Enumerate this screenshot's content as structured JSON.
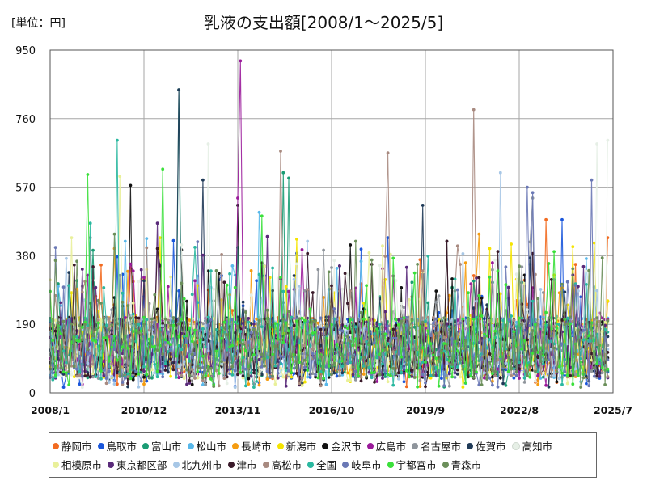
{
  "unit_label": "[単位：円]",
  "chart_data": {
    "type": "line",
    "title": "乳液の支出額[2008/1～2025/5]",
    "xlabel": "",
    "ylabel": "",
    "x_range": [
      "2008/1",
      "2025/7"
    ],
    "x_ticks": [
      "2008/1",
      "2010/12",
      "2013/11",
      "2016/10",
      "2019/9",
      "2022/8",
      "2025/7"
    ],
    "ylim": [
      0,
      950
    ],
    "y_ticks": [
      0,
      190,
      380,
      570,
      760,
      950
    ],
    "grid": true,
    "legend_position": "bottom",
    "series": [
      {
        "name": "静岡市",
        "color": "#f26b21",
        "peaks": [
          [
            2025.33,
            550
          ],
          [
            2023.42,
            480
          ],
          [
            2025.33,
            430
          ]
        ]
      },
      {
        "name": "鳥取市",
        "color": "#1a56db",
        "peaks": [
          [
            2023.92,
            480
          ],
          [
            2018.5,
            430
          ]
        ]
      },
      {
        "name": "富山市",
        "color": "#1a9c74",
        "peaks": [
          [
            2012.0,
            840
          ],
          [
            2015.25,
            610
          ],
          [
            2015.42,
            595
          ]
        ]
      },
      {
        "name": "松山市",
        "color": "#58b8ea",
        "peaks": [
          [
            2014.5,
            500
          ],
          [
            2010.33,
            420
          ]
        ]
      },
      {
        "name": "長崎市",
        "color": "#f59c10",
        "peaks": [
          [
            2021.33,
            440
          ],
          [
            2010.0,
            400
          ]
        ]
      },
      {
        "name": "新潟市",
        "color": "#f5e400",
        "peaks": [
          [
            2011.42,
            430
          ],
          [
            2021.67,
            400
          ]
        ]
      },
      {
        "name": "金沢市",
        "color": "#111111",
        "peaks": [
          [
            2010.5,
            575
          ],
          [
            2013.83,
            520
          ],
          [
            2020.33,
            420
          ]
        ]
      },
      {
        "name": "広島市",
        "color": "#9a1a9a",
        "peaks": [
          [
            2013.92,
            920
          ],
          [
            2013.83,
            540
          ]
        ]
      },
      {
        "name": "名古屋市",
        "color": "#8f959c",
        "peaks": [
          [
            2023.0,
            540
          ],
          [
            2009.25,
            430
          ]
        ]
      },
      {
        "name": "佐賀市",
        "color": "#1f3a57",
        "peaks": [
          [
            2012.0,
            840
          ],
          [
            2012.75,
            590
          ],
          [
            2019.58,
            520
          ]
        ]
      },
      {
        "name": "高知市",
        "color": "#e6efe6",
        "peaks": [
          [
            2025.33,
            700
          ],
          [
            2012.92,
            690
          ],
          [
            2025.0,
            690
          ]
        ]
      },
      {
        "name": "相模原市",
        "color": "#e9f09a",
        "peaks": [
          [
            2010.17,
            600
          ],
          [
            2008.67,
            430
          ]
        ]
      },
      {
        "name": "東京都区部",
        "color": "#5a2a7a",
        "peaks": [
          [
            2011.33,
            470
          ],
          [
            2024.58,
            350
          ]
        ]
      },
      {
        "name": "北九州市",
        "color": "#a7c7e6",
        "peaks": [
          [
            2022.0,
            610
          ],
          [
            2016.0,
            420
          ]
        ]
      },
      {
        "name": "津市",
        "color": "#3a1a2a",
        "peaks": [
          [
            2014.58,
            360
          ],
          [
            2020.33,
            420
          ]
        ]
      },
      {
        "name": "高松市",
        "color": "#a88a80",
        "peaks": [
          [
            2021.17,
            785
          ],
          [
            2018.5,
            665
          ],
          [
            2015.17,
            670
          ]
        ]
      },
      {
        "name": "全国",
        "color": "#2ab8a0",
        "peaks": [
          [
            2010.08,
            700
          ],
          [
            2009.25,
            470
          ]
        ]
      },
      {
        "name": "岐阜市",
        "color": "#6a78b5",
        "peaks": [
          [
            2022.83,
            570
          ],
          [
            2024.83,
            590
          ],
          [
            2023.0,
            555
          ]
        ]
      },
      {
        "name": "宇都宮市",
        "color": "#3ae03a",
        "peaks": [
          [
            2009.17,
            605
          ],
          [
            2011.5,
            620
          ],
          [
            2014.58,
            490
          ]
        ]
      },
      {
        "name": "青森市",
        "color": "#6b8f5a",
        "peaks": [
          [
            2010.0,
            440
          ],
          [
            2017.5,
            420
          ]
        ]
      }
    ]
  }
}
